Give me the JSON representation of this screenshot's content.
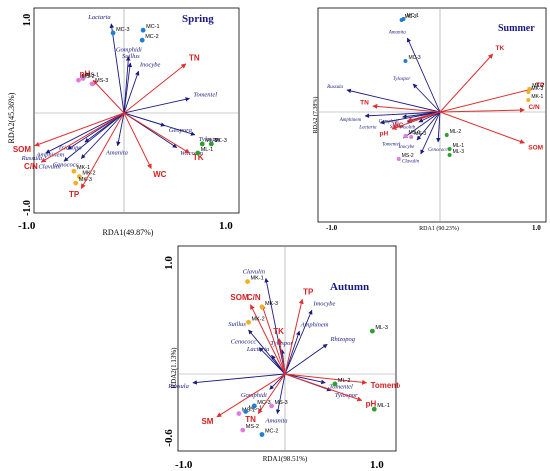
{
  "colors": {
    "species_arrow": "#1a1a80",
    "env_arrow": "#e03030",
    "MC": "#1f7fd0",
    "MS": "#e07ce0",
    "MK": "#f0b020",
    "ML": "#2ca02c"
  },
  "chart_data": [
    {
      "type": "scatter",
      "title": "Spring",
      "xlabel": "RDA1(49.87%)",
      "ylabel": "RDA2(45.36%)",
      "xlim": [
        -1.0,
        1.0
      ],
      "ylim": [
        -1.0,
        1.0
      ],
      "x_ticks": [
        "-1.0",
        "1.0"
      ],
      "y_ticks": [
        "1.0",
        "-1.0"
      ],
      "species": [
        {
          "name": "Lactaria",
          "x": -0.14,
          "y": 0.98
        },
        {
          "name": "Gomphidi",
          "x": 0.05,
          "y": 0.62
        },
        {
          "name": "Suillus",
          "x": 0.07,
          "y": 0.55
        },
        {
          "name": "Inocybe",
          "x": 0.16,
          "y": 0.46
        },
        {
          "name": "Tomentel",
          "x": 0.72,
          "y": 0.16
        },
        {
          "name": "Geopora",
          "x": 0.45,
          "y": -0.14
        },
        {
          "name": "Tylospor",
          "x": 0.78,
          "y": -0.24
        },
        {
          "name": "Wilcoxin",
          "x": 0.58,
          "y": -0.38
        },
        {
          "name": "Amanita",
          "x": -0.07,
          "y": -0.36
        },
        {
          "name": "Trichopo",
          "x": -0.43,
          "y": -0.32
        },
        {
          "name": "Amphinem",
          "x": -0.62,
          "y": -0.4
        },
        {
          "name": "Russula",
          "x": -0.86,
          "y": -0.44
        },
        {
          "name": "Cenococc",
          "x": -0.47,
          "y": -0.5
        },
        {
          "name": "Clavulin",
          "x": -0.66,
          "y": -0.53
        }
      ],
      "env": [
        {
          "name": "TN",
          "x": 0.68,
          "y": 0.54
        },
        {
          "name": "pH",
          "x": -0.34,
          "y": 0.36
        },
        {
          "name": "TK",
          "x": 0.72,
          "y": -0.44
        },
        {
          "name": "WC",
          "x": 0.3,
          "y": -0.61
        },
        {
          "name": "SOM",
          "x": -0.98,
          "y": -0.36
        },
        {
          "name": "C/N",
          "x": -0.91,
          "y": -0.54
        },
        {
          "name": "TP",
          "x": -0.47,
          "y": -0.83
        }
      ],
      "sites": [
        {
          "name": "MC-1",
          "group": "MC",
          "x": 0.21,
          "y": 0.91
        },
        {
          "name": "MC-2",
          "group": "MC",
          "x": 0.2,
          "y": 0.8
        },
        {
          "name": "MC-3",
          "group": "MC",
          "x": -0.12,
          "y": 0.88
        },
        {
          "name": "MS-1",
          "group": "MS",
          "x": -0.45,
          "y": 0.38
        },
        {
          "name": "MS-2",
          "group": "MS",
          "x": -0.5,
          "y": 0.36
        },
        {
          "name": "MS-3",
          "group": "MS",
          "x": -0.35,
          "y": 0.32
        },
        {
          "name": "MK-1",
          "group": "MK",
          "x": -0.55,
          "y": -0.64
        },
        {
          "name": "MK-2",
          "group": "MK",
          "x": -0.49,
          "y": -0.7
        },
        {
          "name": "MK-3",
          "group": "MK",
          "x": -0.53,
          "y": -0.77
        },
        {
          "name": "ML-1",
          "group": "ML",
          "x": 0.81,
          "y": -0.44
        },
        {
          "name": "ML-2",
          "group": "ML",
          "x": 0.86,
          "y": -0.34
        },
        {
          "name": "ML-3",
          "group": "ML",
          "x": 0.96,
          "y": -0.34
        }
      ]
    },
    {
      "type": "scatter",
      "title": "Summer",
      "xlabel": "RDA1 (90.23%)",
      "ylabel": "RDA2 (7.38%)",
      "xlim": [
        -1.0,
        1.0
      ],
      "ylim": [
        -1.0,
        1.0
      ],
      "x_ticks": [
        "-1.0",
        "1.0"
      ],
      "y_ticks": [],
      "species": [
        {
          "name": "Amanita",
          "x": -0.34,
          "y": 0.74
        },
        {
          "name": "Tylospor",
          "x": -0.28,
          "y": 0.28
        },
        {
          "name": "Russula",
          "x": -0.97,
          "y": 0.22
        },
        {
          "name": "Amphinem",
          "x": -0.78,
          "y": -0.04
        },
        {
          "name": "Lactaria",
          "x": -0.62,
          "y": -0.11
        },
        {
          "name": "Gomphidi",
          "x": -0.39,
          "y": -0.05
        },
        {
          "name": "Suillus",
          "x": -0.34,
          "y": -0.1
        },
        {
          "name": "Pisolith",
          "x": -0.22,
          "y": -0.1
        },
        {
          "name": "Tomentel",
          "x": -0.38,
          "y": -0.26
        },
        {
          "name": "Inocybe",
          "x": -0.24,
          "y": -0.28
        },
        {
          "name": "Cenococc",
          "x": -0.02,
          "y": -0.3
        },
        {
          "name": "Clavulin",
          "x": -0.2,
          "y": -0.42
        }
      ],
      "env": [
        {
          "name": "TK",
          "x": 0.55,
          "y": 0.58
        },
        {
          "name": "TP",
          "x": 0.96,
          "y": 0.23
        },
        {
          "name": "C/N",
          "x": 0.88,
          "y": 0.02
        },
        {
          "name": "SOM",
          "x": 0.88,
          "y": -0.31
        },
        {
          "name": "TN",
          "x": -0.7,
          "y": 0.06
        },
        {
          "name": "pH",
          "x": -0.5,
          "y": -0.17
        },
        {
          "name": "WC",
          "x": -0.34,
          "y": -0.09
        }
      ],
      "sites": [
        {
          "name": "MC-1",
          "group": "MC",
          "x": -0.38,
          "y": 0.93
        },
        {
          "name": "MC-2",
          "group": "MC",
          "x": -0.4,
          "y": 0.92
        },
        {
          "name": "MC-3",
          "group": "MC",
          "x": -0.36,
          "y": 0.51
        },
        {
          "name": "MK-1",
          "group": "MK",
          "x": 0.92,
          "y": 0.12
        },
        {
          "name": "MK-2",
          "group": "MK",
          "x": 0.93,
          "y": 0.23
        },
        {
          "name": "MK-3",
          "group": "MK",
          "x": 0.92,
          "y": 0.2
        },
        {
          "name": "ML-1",
          "group": "ML",
          "x": 0.1,
          "y": -0.37
        },
        {
          "name": "ML-2",
          "group": "ML",
          "x": 0.07,
          "y": -0.23
        },
        {
          "name": "ML-3",
          "group": "ML",
          "x": 0.1,
          "y": -0.43
        },
        {
          "name": "MS-1",
          "group": "MS",
          "x": -0.36,
          "y": -0.24
        },
        {
          "name": "MS-2",
          "group": "MS",
          "x": -0.43,
          "y": -0.47
        },
        {
          "name": "MS-3",
          "group": "MS",
          "x": -0.3,
          "y": -0.25
        }
      ]
    },
    {
      "type": "scatter",
      "title": "Autumn",
      "xlabel": "RDA1(98.51%)",
      "ylabel": "RDA2(1.13%)",
      "xlim": [
        -1.0,
        1.0
      ],
      "ylim": [
        -0.6,
        1.0
      ],
      "x_ticks": [
        "-1.0",
        "1.0"
      ],
      "y_ticks": [
        "1.0",
        "-0.6"
      ],
      "species": [
        {
          "name": "Clavulin",
          "x": -0.2,
          "y": 0.87
        },
        {
          "name": "Imocybe",
          "x": 0.28,
          "y": 0.58
        },
        {
          "name": "Amphinem",
          "x": 0.15,
          "y": 0.39
        },
        {
          "name": "Rhizopog",
          "x": 0.44,
          "y": 0.27
        },
        {
          "name": "Suillus",
          "x": -0.38,
          "y": 0.4
        },
        {
          "name": "Cenococc",
          "x": -0.27,
          "y": 0.24
        },
        {
          "name": "Lactaria",
          "x": -0.14,
          "y": 0.17
        },
        {
          "name": "Tylospor",
          "x": -0.03,
          "y": 0.22
        },
        {
          "name": "Russula",
          "x": -0.96,
          "y": -0.08
        },
        {
          "name": "Gomphidi",
          "x": -0.16,
          "y": -0.14
        },
        {
          "name": "Amanita",
          "x": -0.08,
          "y": -0.36
        },
        {
          "name": "Tomentel",
          "x": 0.42,
          "y": -0.08
        },
        {
          "name": "Tylospor",
          "x": 0.48,
          "y": -0.15
        }
      ],
      "env": [
        {
          "name": "TP",
          "x": 0.18,
          "y": 0.68
        },
        {
          "name": "SOM",
          "x": -0.36,
          "y": 0.63
        },
        {
          "name": "C/N",
          "x": -0.24,
          "y": 0.63
        },
        {
          "name": "TK",
          "x": -0.06,
          "y": 0.32
        },
        {
          "name": "Tomentel",
          "x": 0.85,
          "y": -0.08
        },
        {
          "name": "pH",
          "x": 0.8,
          "y": -0.24
        },
        {
          "name": "SM",
          "x": -0.71,
          "y": -0.39
        },
        {
          "name": "TN",
          "x": -0.28,
          "y": -0.36
        }
      ],
      "sites": [
        {
          "name": "MK-1",
          "group": "MK",
          "x": -0.39,
          "y": 0.84
        },
        {
          "name": "MK-2",
          "group": "MK",
          "x": -0.38,
          "y": 0.47
        },
        {
          "name": "MK-3",
          "group": "MK",
          "x": -0.24,
          "y": 0.61
        },
        {
          "name": "ML-1",
          "group": "ML",
          "x": 0.93,
          "y": -0.32
        },
        {
          "name": "ML-2",
          "group": "ML",
          "x": 0.52,
          "y": -0.09
        },
        {
          "name": "ML-3",
          "group": "ML",
          "x": 0.91,
          "y": 0.39
        },
        {
          "name": "MS-1",
          "group": "MS",
          "x": -0.48,
          "y": -0.36
        },
        {
          "name": "MS-2",
          "group": "MS",
          "x": -0.44,
          "y": -0.51
        },
        {
          "name": "MS-3",
          "group": "MS",
          "x": -0.14,
          "y": -0.29
        },
        {
          "name": "MC-1",
          "group": "MC",
          "x": -0.41,
          "y": -0.34
        },
        {
          "name": "MC-2",
          "group": "MC",
          "x": -0.24,
          "y": -0.55
        },
        {
          "name": "MC-3",
          "group": "MC",
          "x": -0.32,
          "y": -0.29
        }
      ]
    }
  ]
}
